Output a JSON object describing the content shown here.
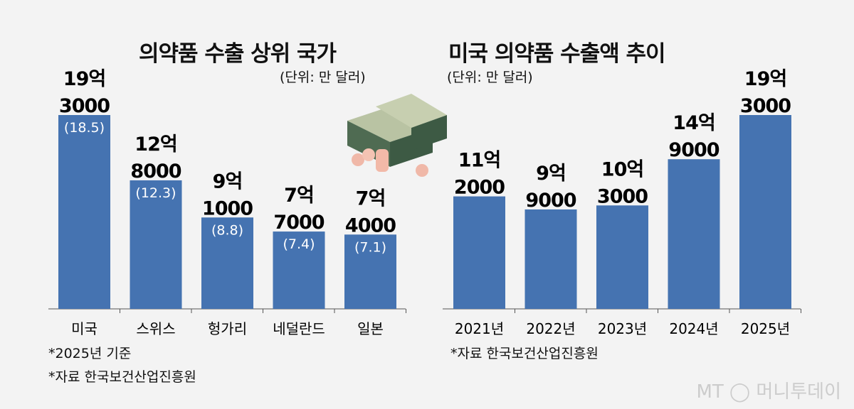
{
  "chart_data": [
    {
      "type": "bar",
      "title": "의약품 수출 상위 국가",
      "unit_label": "(단위: 만 달러)",
      "categories": [
        "미국",
        "스위스",
        "헝가리",
        "네덜란드",
        "일본"
      ],
      "values": [
        193000,
        128000,
        91000,
        77000,
        74000
      ],
      "label_top": [
        "19억",
        "12억",
        "9억",
        "7억",
        "7억"
      ],
      "label_bottom": [
        "3000",
        "8000",
        "1000",
        "7000",
        "4000"
      ],
      "share_labels": [
        "(18.5)",
        "(12.3)",
        "(8.8)",
        "(7.4)",
        "(7.1)"
      ],
      "notes": [
        "*2025년 기준",
        "*자료 한국보건산업진흥원"
      ],
      "bar_color": "#4573b1"
    },
    {
      "type": "bar",
      "title": "미국 의약품 수출액 추이",
      "unit_label": "(단위: 만 달러)",
      "categories": [
        "2021년",
        "2022년",
        "2023년",
        "2024년",
        "2025년"
      ],
      "values": [
        112000,
        99000,
        103000,
        149000,
        193000
      ],
      "label_top": [
        "11억",
        "9억",
        "10억",
        "14억",
        "19억"
      ],
      "label_bottom": [
        "2000",
        "9000",
        "3000",
        "9000",
        "3000"
      ],
      "notes": [
        "*자료 한국보건산업진흥원"
      ],
      "bar_color": "#4573b1"
    }
  ],
  "logo": "MT 머니투데이"
}
